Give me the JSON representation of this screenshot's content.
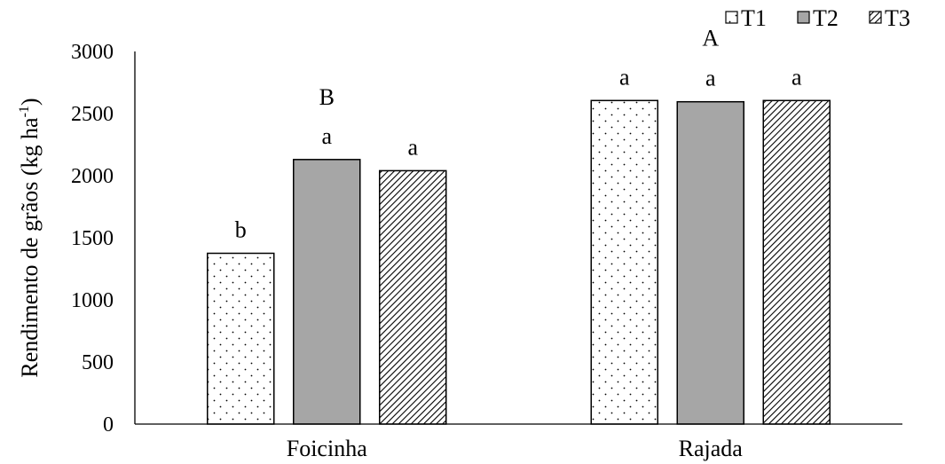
{
  "chart_data": {
    "type": "bar",
    "title": "",
    "xlabel": "",
    "ylabel_main": "Rendimento de grãos (kg ha",
    "ylabel_sup": "-1",
    "ylabel_close": ")",
    "ylim": [
      0,
      3000
    ],
    "yticks": [
      0,
      500,
      1000,
      1500,
      2000,
      2500,
      3000
    ],
    "categories": [
      "Foicinha",
      "Rajada"
    ],
    "category_letters": [
      "B",
      "A"
    ],
    "legend_position": "top-right",
    "grid": false,
    "series": [
      {
        "name": "T1",
        "pattern": "dots",
        "values": [
          1375,
          2605
        ],
        "letters": [
          "b",
          "a"
        ]
      },
      {
        "name": "T2",
        "pattern": "solid-gray",
        "values": [
          2130,
          2595
        ],
        "letters": [
          "a",
          "a"
        ]
      },
      {
        "name": "T3",
        "pattern": "diagonal",
        "values": [
          2040,
          2605
        ],
        "letters": [
          "a",
          "a"
        ]
      }
    ]
  },
  "colors": {
    "axis": "#000000",
    "bar_outline": "#000000",
    "gray_fill": "#a6a6a6",
    "pattern_ink": "#000000",
    "background": "#ffffff"
  }
}
